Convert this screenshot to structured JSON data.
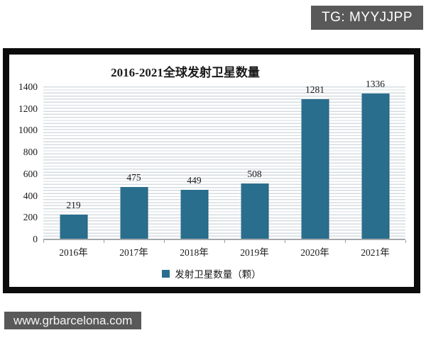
{
  "overlays": {
    "tg_badge": "TG: MYYJJPP",
    "website": "www.grbarcelona.com"
  },
  "colors": {
    "bar": "#2a6e8d",
    "badge_background": "#595959",
    "frame_border": "#0c0c0c",
    "stripe_line": "#d5dce0"
  },
  "chart_data": {
    "type": "bar",
    "title": "2016-2021全球发射卫星数量",
    "categories": [
      "2016年",
      "2017年",
      "2018年",
      "2019年",
      "2020年",
      "2021年"
    ],
    "values": [
      219,
      475,
      449,
      508,
      1281,
      1336
    ],
    "legend": "发射卫星数量（颗）",
    "legend_position": "bottom",
    "xlabel": "",
    "ylabel": "",
    "ylim": [
      0,
      1400
    ],
    "ytick_step": 200,
    "yticks": [
      "0",
      "200",
      "400",
      "600",
      "800",
      "1000",
      "1200",
      "1400"
    ],
    "grid": "horizontal-stripes"
  }
}
